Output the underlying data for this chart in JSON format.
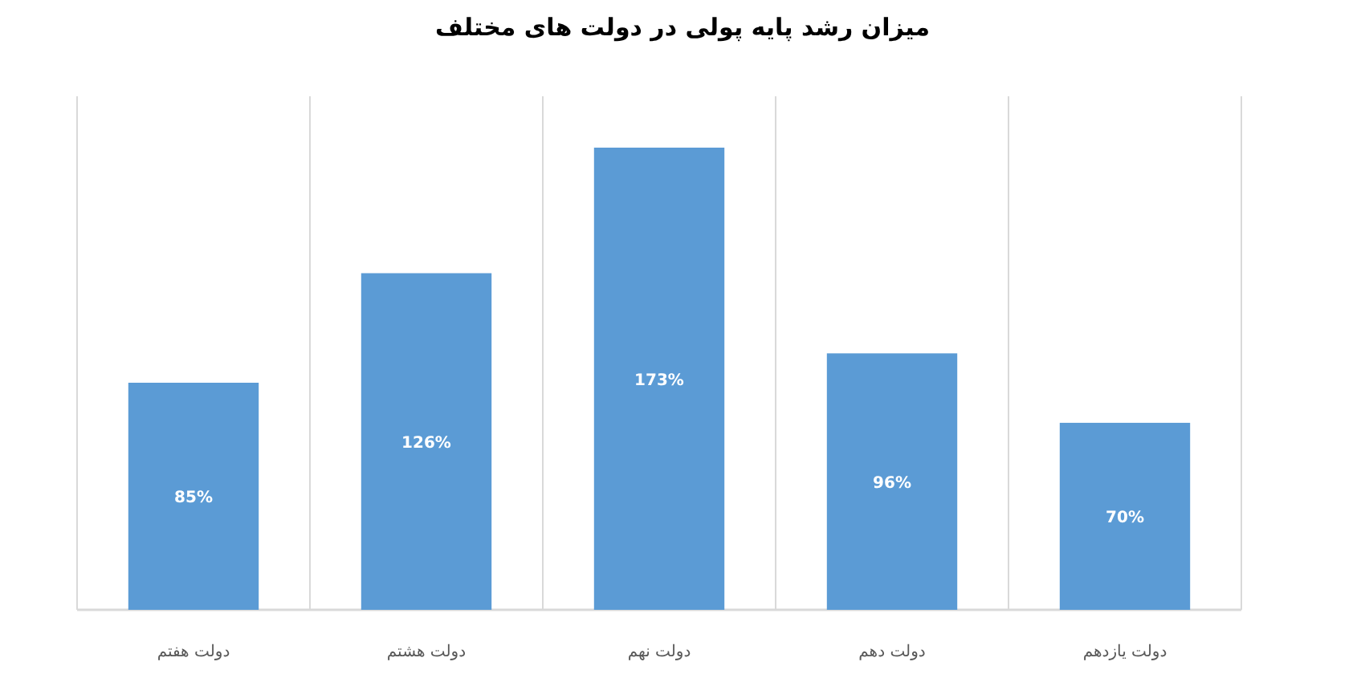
{
  "chart_data": {
    "type": "bar",
    "title": "میزان رشد پایه پولی در دولت های مختلف",
    "categories": [
      "دولت هفتم",
      "دولت هشتم",
      "دولت نهم",
      "دولت دهم",
      "دولت یازدهم"
    ],
    "values": [
      85,
      126,
      173,
      96,
      70
    ],
    "value_labels": [
      "85%",
      "126%",
      "173%",
      "96%",
      "70%"
    ],
    "color": "#5b9bd5",
    "grid": "x"
  }
}
